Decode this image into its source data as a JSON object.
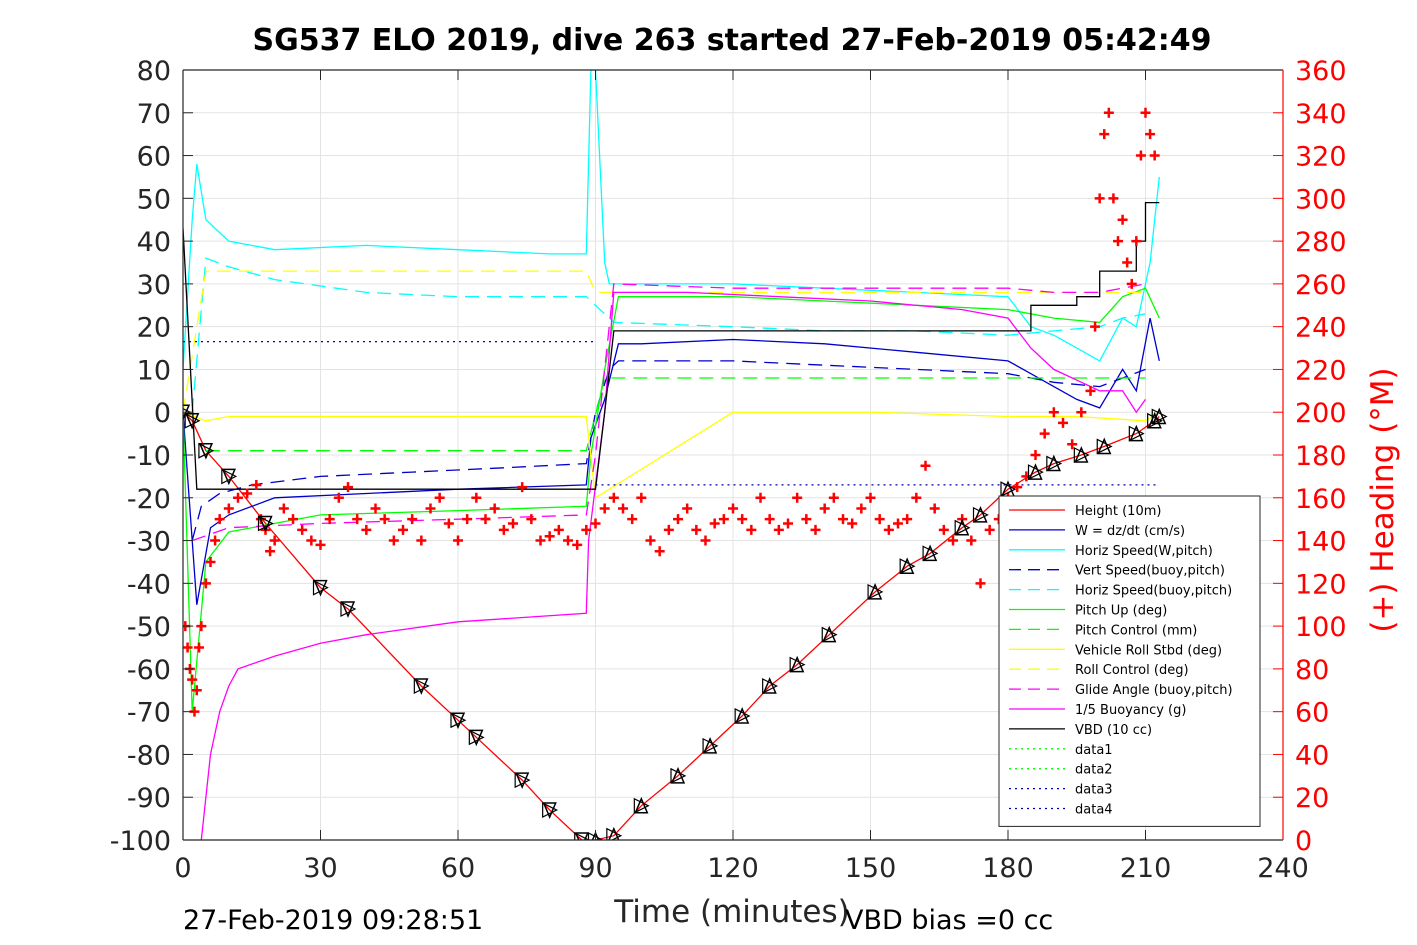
{
  "chart_data": {
    "type": "line",
    "title": "SG537 ELO 2019, dive 263 started 27-Feb-2019 05:42:49",
    "xlabel": "Time (minutes)",
    "ylabel": "",
    "ylabel_right": "(+) Heading (°M)",
    "xlim": [
      0,
      240
    ],
    "ylim": [
      -100,
      80
    ],
    "ylim_right": [
      0,
      360
    ],
    "x_ticks": [
      "0",
      "30",
      "60",
      "90",
      "120",
      "150",
      "180",
      "210",
      "240"
    ],
    "y_ticks": [
      "80",
      "70",
      "60",
      "50",
      "40",
      "30",
      "20",
      "10",
      "0",
      "-10",
      "-20",
      "-30",
      "-40",
      "-50",
      "-60",
      "-70",
      "-80",
      "-90",
      "-100"
    ],
    "y_ticks_right": [
      "360",
      "340",
      "320",
      "300",
      "280",
      "260",
      "240",
      "220",
      "200",
      "180",
      "160",
      "140",
      "120",
      "100",
      "80",
      "60",
      "40",
      "20",
      "0"
    ],
    "grid": true,
    "legend_position": "bottom-right",
    "footer_left": "27-Feb-2019 09:28:51",
    "footer_right": "VBD bias =0 cc",
    "series": [
      {
        "name": "Height (10m)",
        "color": "#ff0000",
        "style": "solid",
        "marker": "none",
        "x": [
          0,
          2,
          5,
          10,
          18,
          30,
          36,
          52,
          60,
          64,
          74,
          80,
          87,
          90,
          94,
          100,
          108,
          115,
          122,
          128,
          134,
          141,
          151,
          158,
          163,
          170,
          174,
          180,
          186,
          190,
          196,
          201,
          208,
          212,
          213
        ],
        "y": [
          0,
          -2,
          -9,
          -15,
          -26,
          -41,
          -46,
          -64,
          -72,
          -76,
          -86,
          -93,
          -100,
          -100,
          -99,
          -92,
          -85,
          -78,
          -71,
          -64,
          -59,
          -52,
          -42,
          -36,
          -33,
          -27,
          -24,
          -18,
          -14,
          -12,
          -10,
          -8,
          -5,
          -2,
          -1
        ]
      },
      {
        "name": "W = dz/dt (cm/s)",
        "color": "#0000cc",
        "style": "solid",
        "marker": "none",
        "x": [
          0,
          3,
          6,
          10,
          20,
          40,
          60,
          88,
          89,
          92,
          95,
          100,
          120,
          140,
          160,
          180,
          185,
          190,
          195,
          200,
          205,
          208,
          211,
          213
        ],
        "y": [
          0,
          -45,
          -27,
          -24,
          -20,
          -19,
          -18,
          -17,
          -6,
          3,
          16,
          16,
          17,
          16,
          14,
          12,
          9,
          6,
          3,
          1,
          10,
          5,
          22,
          12
        ]
      },
      {
        "name": "Horiz Speed(W,pitch)",
        "color": "#00ffff",
        "style": "solid",
        "marker": "none",
        "x": [
          0,
          2,
          3,
          5,
          10,
          20,
          40,
          60,
          80,
          88,
          89,
          90,
          92,
          93,
          95,
          120,
          140,
          160,
          180,
          185,
          190,
          195,
          200,
          205,
          208,
          211,
          213
        ],
        "y": [
          10,
          45,
          58,
          45,
          40,
          38,
          39,
          38,
          37,
          37,
          80,
          80,
          35,
          30,
          30,
          30,
          29,
          28,
          27,
          20,
          18,
          15,
          12,
          22,
          20,
          35,
          55
        ]
      },
      {
        "name": "Vert Speed(buoy,pitch)",
        "color": "#0000cc",
        "style": "dashed",
        "marker": "none",
        "x": [
          2,
          4,
          8,
          15,
          30,
          50,
          70,
          88,
          90,
          93,
          95,
          120,
          140,
          160,
          180,
          190,
          200,
          205,
          210
        ],
        "y": [
          -30,
          -22,
          -19,
          -17,
          -15,
          -14,
          -13,
          -12,
          0,
          10,
          12,
          12,
          11,
          10,
          9,
          7,
          6,
          8,
          10
        ]
      },
      {
        "name": "Horiz Speed(buoy,pitch)",
        "color": "#00ffff",
        "style": "dashed",
        "marker": "none",
        "x": [
          2,
          5,
          10,
          20,
          40,
          60,
          88,
          90,
          94,
          120,
          140,
          160,
          180,
          190,
          200,
          205,
          210
        ],
        "y": [
          0,
          36,
          34,
          31,
          28,
          27,
          27,
          25,
          21,
          20,
          19,
          19,
          18,
          19,
          20,
          22,
          23
        ]
      },
      {
        "name": "Pitch Up (deg)",
        "color": "#00ff00",
        "style": "solid",
        "marker": "none",
        "x": [
          0,
          2,
          5,
          10,
          30,
          60,
          88,
          89,
          92,
          95,
          120,
          140,
          160,
          180,
          190,
          200,
          205,
          210,
          213
        ],
        "y": [
          0,
          -70,
          -35,
          -28,
          -24,
          -23,
          -22,
          -10,
          10,
          27,
          27,
          26,
          25,
          24,
          22,
          21,
          27,
          29,
          22
        ]
      },
      {
        "name": "Pitch Control (mm)",
        "color": "#00ff00",
        "style": "dashed",
        "marker": "none",
        "x": [
          5,
          88,
          92,
          180,
          210
        ],
        "y": [
          -9,
          -9,
          8,
          8,
          8
        ]
      },
      {
        "name": "Vehicle Roll Stbd (deg)",
        "color": "#ffff00",
        "style": "solid",
        "marker": "none",
        "x": [
          0,
          5,
          10,
          30,
          60,
          88,
          90,
          120,
          150,
          180,
          195,
          210,
          213
        ],
        "y": [
          0,
          -2,
          -1,
          -1,
          -1,
          -1,
          -20,
          0,
          0,
          -1,
          -1,
          -2,
          0
        ]
      },
      {
        "name": "Roll Control (deg)",
        "color": "#ffff00",
        "style": "dashed",
        "marker": "none",
        "x": [
          0,
          5,
          10,
          30,
          60,
          88,
          90,
          120,
          150,
          180,
          210
        ],
        "y": [
          0,
          33,
          33,
          33,
          33,
          33,
          28,
          28,
          28,
          28,
          28
        ]
      },
      {
        "name": "Glide Angle (buoy,pitch)",
        "color": "#ff00ff",
        "style": "dashed",
        "marker": "none",
        "x": [
          2,
          10,
          30,
          60,
          88,
          90,
          94,
          120,
          150,
          180,
          190,
          200,
          210
        ],
        "y": [
          -30,
          -27,
          -26,
          -25,
          -24,
          -10,
          30,
          29,
          29,
          29,
          28,
          28,
          30
        ]
      },
      {
        "name": "1/5 Buoyancy (g)",
        "color": "#ff00ff",
        "style": "solid",
        "marker": "none",
        "x": [
          4,
          6,
          8,
          10,
          12,
          20,
          30,
          40,
          60,
          88,
          88.5,
          92,
          94,
          110,
          130,
          150,
          170,
          180,
          185,
          190,
          200,
          205,
          208,
          210
        ],
        "y": [
          -100,
          -80,
          -70,
          -64,
          -60,
          -57,
          -54,
          -52,
          -49,
          -47,
          -30,
          0,
          28,
          28,
          27,
          26,
          24,
          22,
          15,
          10,
          5,
          5,
          0,
          3
        ]
      },
      {
        "name": "VBD (10 cc)",
        "color": "#000000",
        "style": "solid",
        "marker": "none",
        "x": [
          0,
          3,
          3,
          90,
          92,
          94,
          185,
          185,
          195,
          195,
          200,
          200,
          208,
          208,
          210,
          210,
          213
        ],
        "y": [
          43,
          -18,
          -18,
          -18,
          0,
          19,
          19,
          25,
          25,
          27,
          27,
          33,
          33,
          40,
          40,
          49,
          49
        ]
      },
      {
        "name": "data1",
        "color": "#00ff00",
        "style": "dotted",
        "marker": "none",
        "x": [],
        "y": []
      },
      {
        "name": "data2",
        "color": "#00ff00",
        "style": "dotted",
        "marker": "none",
        "x": [],
        "y": []
      },
      {
        "name": "data3",
        "color": "#0000aa",
        "style": "dotted",
        "marker": "none",
        "x": [
          0,
          90
        ],
        "y": [
          16.5,
          16.5
        ]
      },
      {
        "name": "data4",
        "color": "#0000aa",
        "style": "dotted",
        "marker": "none",
        "x": [
          90,
          213
        ],
        "y": [
          -17,
          -17
        ]
      },
      {
        "name": "",
        "color": "#ff0000",
        "style": "markers",
        "marker": "plus",
        "axis": "right",
        "x": [
          0.5,
          1,
          1.5,
          2,
          2.5,
          3,
          3.5,
          4,
          5,
          6,
          7,
          8,
          10,
          12,
          14,
          16,
          17,
          18,
          19,
          20,
          22,
          24,
          26,
          28,
          30,
          32,
          34,
          36,
          38,
          40,
          42,
          44,
          46,
          48,
          50,
          52,
          54,
          56,
          58,
          60,
          62,
          64,
          66,
          68,
          70,
          72,
          74,
          76,
          78,
          80,
          82,
          84,
          86,
          88,
          90,
          92,
          94,
          96,
          98,
          100,
          102,
          104,
          106,
          108,
          110,
          112,
          114,
          116,
          118,
          120,
          122,
          124,
          126,
          128,
          130,
          132,
          134,
          136,
          138,
          140,
          142,
          144,
          146,
          148,
          150,
          152,
          154,
          156,
          158,
          160,
          162,
          164,
          166,
          168,
          170,
          172,
          174,
          176,
          178,
          180,
          182,
          184,
          186,
          188,
          190,
          192,
          194,
          196,
          198,
          199,
          200,
          201,
          202,
          203,
          204,
          205,
          206,
          207,
          208,
          209,
          210,
          211,
          212
        ],
        "y": [
          100,
          90,
          80,
          75,
          60,
          70,
          90,
          100,
          120,
          130,
          140,
          150,
          155,
          160,
          162,
          166,
          150,
          145,
          135,
          140,
          155,
          150,
          145,
          140,
          138,
          150,
          160,
          165,
          150,
          145,
          155,
          150,
          140,
          145,
          150,
          140,
          155,
          160,
          148,
          140,
          150,
          160,
          150,
          155,
          145,
          148,
          165,
          150,
          140,
          142,
          145,
          140,
          138,
          145,
          148,
          155,
          160,
          155,
          150,
          160,
          140,
          135,
          145,
          150,
          155,
          145,
          140,
          148,
          150,
          155,
          150,
          145,
          160,
          150,
          145,
          148,
          160,
          150,
          145,
          155,
          160,
          150,
          148,
          155,
          160,
          150,
          145,
          148,
          150,
          160,
          175,
          155,
          145,
          140,
          150,
          140,
          120,
          145,
          150,
          160,
          165,
          170,
          180,
          190,
          200,
          195,
          185,
          200,
          210,
          240,
          300,
          330,
          340,
          300,
          280,
          290,
          270,
          260,
          280,
          320,
          340,
          330,
          320
        ]
      }
    ]
  }
}
